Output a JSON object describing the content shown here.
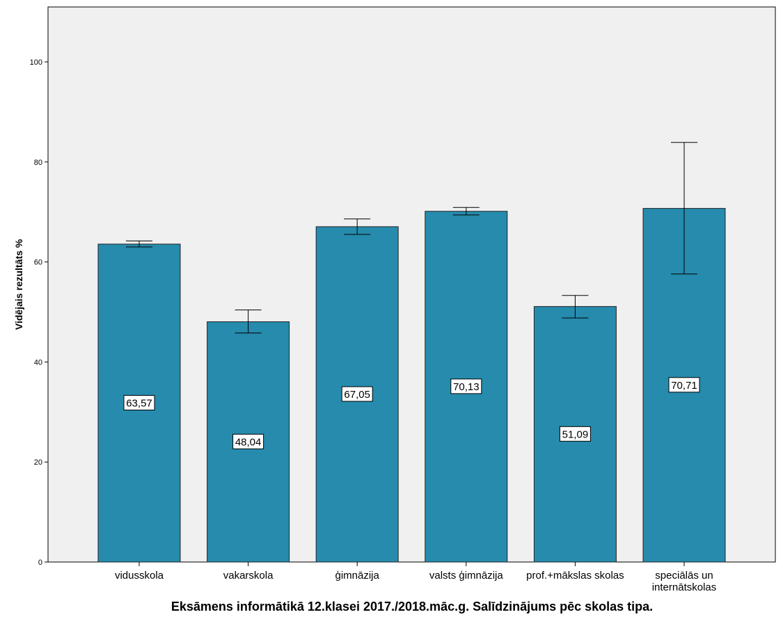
{
  "chart_data": {
    "type": "bar",
    "title": "Eksāmens informātikā 12.klasei 2017./2018.māc.g. Salīdzinājums pēc skolas tipa.",
    "xlabel": "",
    "ylabel": "Vidējais rezultāts %",
    "ylim": [
      0,
      111
    ],
    "yticks": [
      0,
      20,
      40,
      60,
      80,
      100
    ],
    "grid": false,
    "categories": [
      "vidusskola",
      "vakarskola",
      "ģimnāzija",
      "valsts ģimnāzija",
      "prof.+mākslas skolas",
      "speciālās un internātskolas"
    ],
    "values": [
      63.57,
      48.04,
      67.05,
      70.13,
      51.09,
      70.71
    ],
    "value_labels": [
      "63,57",
      "48,04",
      "67,05",
      "70,13",
      "51,09",
      "70,71"
    ],
    "error_low": [
      63.0,
      45.8,
      65.5,
      69.4,
      48.8,
      57.6
    ],
    "error_high": [
      64.2,
      50.4,
      68.6,
      70.9,
      53.3,
      83.9
    ],
    "colors": {
      "bar": "#268bad",
      "plot_bg": "#f0f0f0"
    }
  }
}
